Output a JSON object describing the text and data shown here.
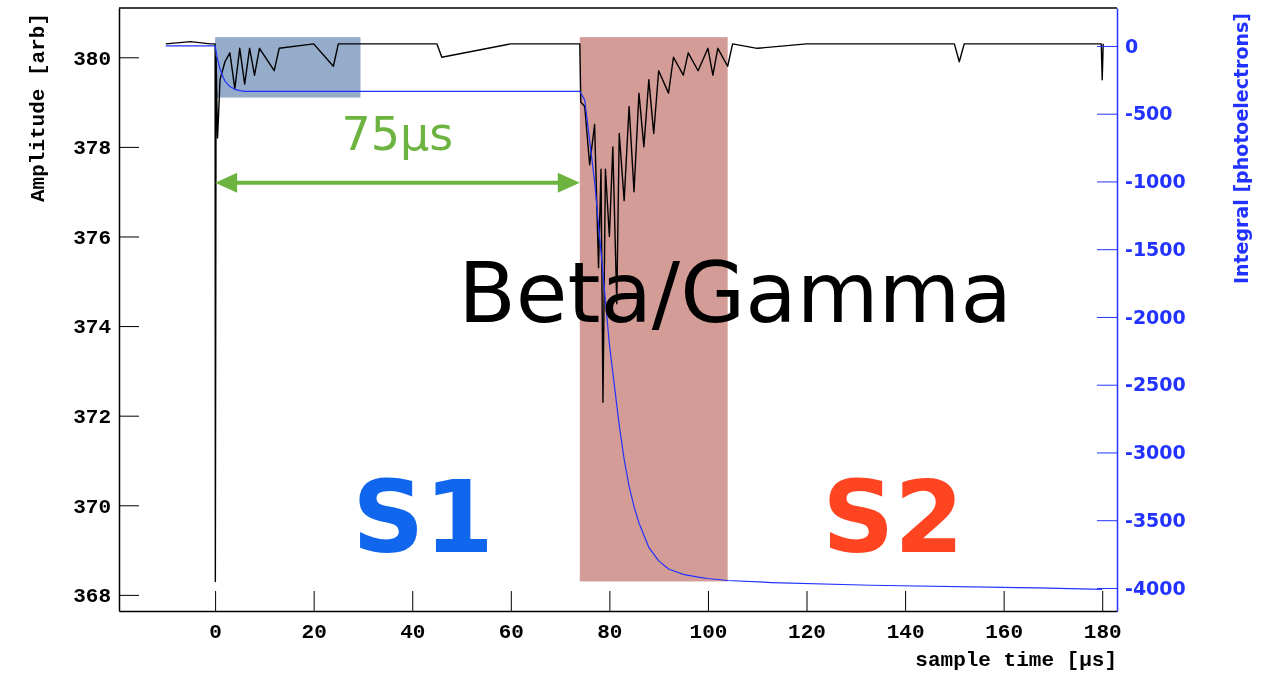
{
  "chart_data": {
    "type": "line",
    "xlabel": "sample time [μs]",
    "ylabel": "Amplitude [arb]",
    "y2label": "Integral [photoelectrons]",
    "xlim": [
      -19.5,
      183
    ],
    "ylim": [
      367.64,
      381.1
    ],
    "y2lim": [
      -4170,
      280
    ],
    "xticks": [
      0,
      20,
      40,
      60,
      80,
      100,
      120,
      140,
      160,
      180
    ],
    "yticks": [
      368,
      370,
      372,
      374,
      376,
      378,
      380
    ],
    "y2ticks": [
      -4000,
      -3500,
      -3000,
      -2500,
      -2000,
      -1500,
      -1000,
      -500,
      0
    ],
    "series": [
      {
        "color": "#000000",
        "x": [
          -10,
          -5,
          -1,
          0,
          0.05,
          0.2,
          0.5,
          1,
          2,
          3,
          4,
          5,
          6,
          7,
          8,
          9,
          12,
          13,
          20,
          24,
          25,
          30,
          45,
          46,
          60,
          74,
          74.2,
          75,
          76,
          77,
          77.8,
          78.3,
          78.7,
          79.2,
          80,
          80.7,
          81.5,
          82,
          83,
          84,
          85,
          86,
          87,
          88,
          89,
          90,
          92,
          93,
          95,
          96,
          98,
          100,
          101,
          102,
          104,
          105,
          110,
          120,
          150,
          151,
          152,
          179.8,
          180,
          180.2
        ],
        "values": [
          380.3,
          380.35,
          380.3,
          380.3,
          368.3,
          380.0,
          378.2,
          379.5,
          379.9,
          380.1,
          379.3,
          380.2,
          379.4,
          380.2,
          379.6,
          380.2,
          379.7,
          380.2,
          380.3,
          379.8,
          380.3,
          380.3,
          380.3,
          380.0,
          380.3,
          380.3,
          379.0,
          378.9,
          377.6,
          378.5,
          375.3,
          377.5,
          372.3,
          377.5,
          376.0,
          378.0,
          374.5,
          378.3,
          376.8,
          378.9,
          377.0,
          379.2,
          378.0,
          379.5,
          378.3,
          379.7,
          379.2,
          380.0,
          379.6,
          380.1,
          379.7,
          380.2,
          379.6,
          380.2,
          379.8,
          380.3,
          380.2,
          380.3,
          380.3,
          379.9,
          380.3,
          380.3,
          379.5,
          380.3
        ]
      },
      {
        "color": "#2233ff",
        "axis": "y2",
        "x": [
          -10,
          0,
          0.5,
          1,
          1.5,
          2,
          3,
          4,
          5,
          6,
          74,
          75,
          76,
          77,
          78,
          79,
          80,
          81,
          82,
          83,
          84,
          85,
          86,
          88,
          90,
          92,
          95,
          98,
          100,
          104,
          113,
          133,
          167,
          180
        ],
        "values": [
          0,
          0,
          -100,
          -170,
          -220,
          -260,
          -300,
          -320,
          -330,
          -335,
          -335,
          -400,
          -700,
          -1000,
          -1400,
          -1800,
          -2200,
          -2500,
          -2800,
          -3050,
          -3250,
          -3400,
          -3520,
          -3700,
          -3800,
          -3860,
          -3900,
          -3920,
          -3930,
          -3945,
          -3960,
          -3980,
          -4000,
          -4010
        ]
      }
    ],
    "bands": [
      {
        "axis": "x",
        "from": 0,
        "to": 29.5,
        "color": "#4f77a8"
      },
      {
        "axis": "x",
        "from": 74,
        "to": 104,
        "color": "#b85a50"
      }
    ],
    "annotations": [
      "75μs",
      "Beta/Gamma",
      "S1",
      "S2"
    ]
  }
}
